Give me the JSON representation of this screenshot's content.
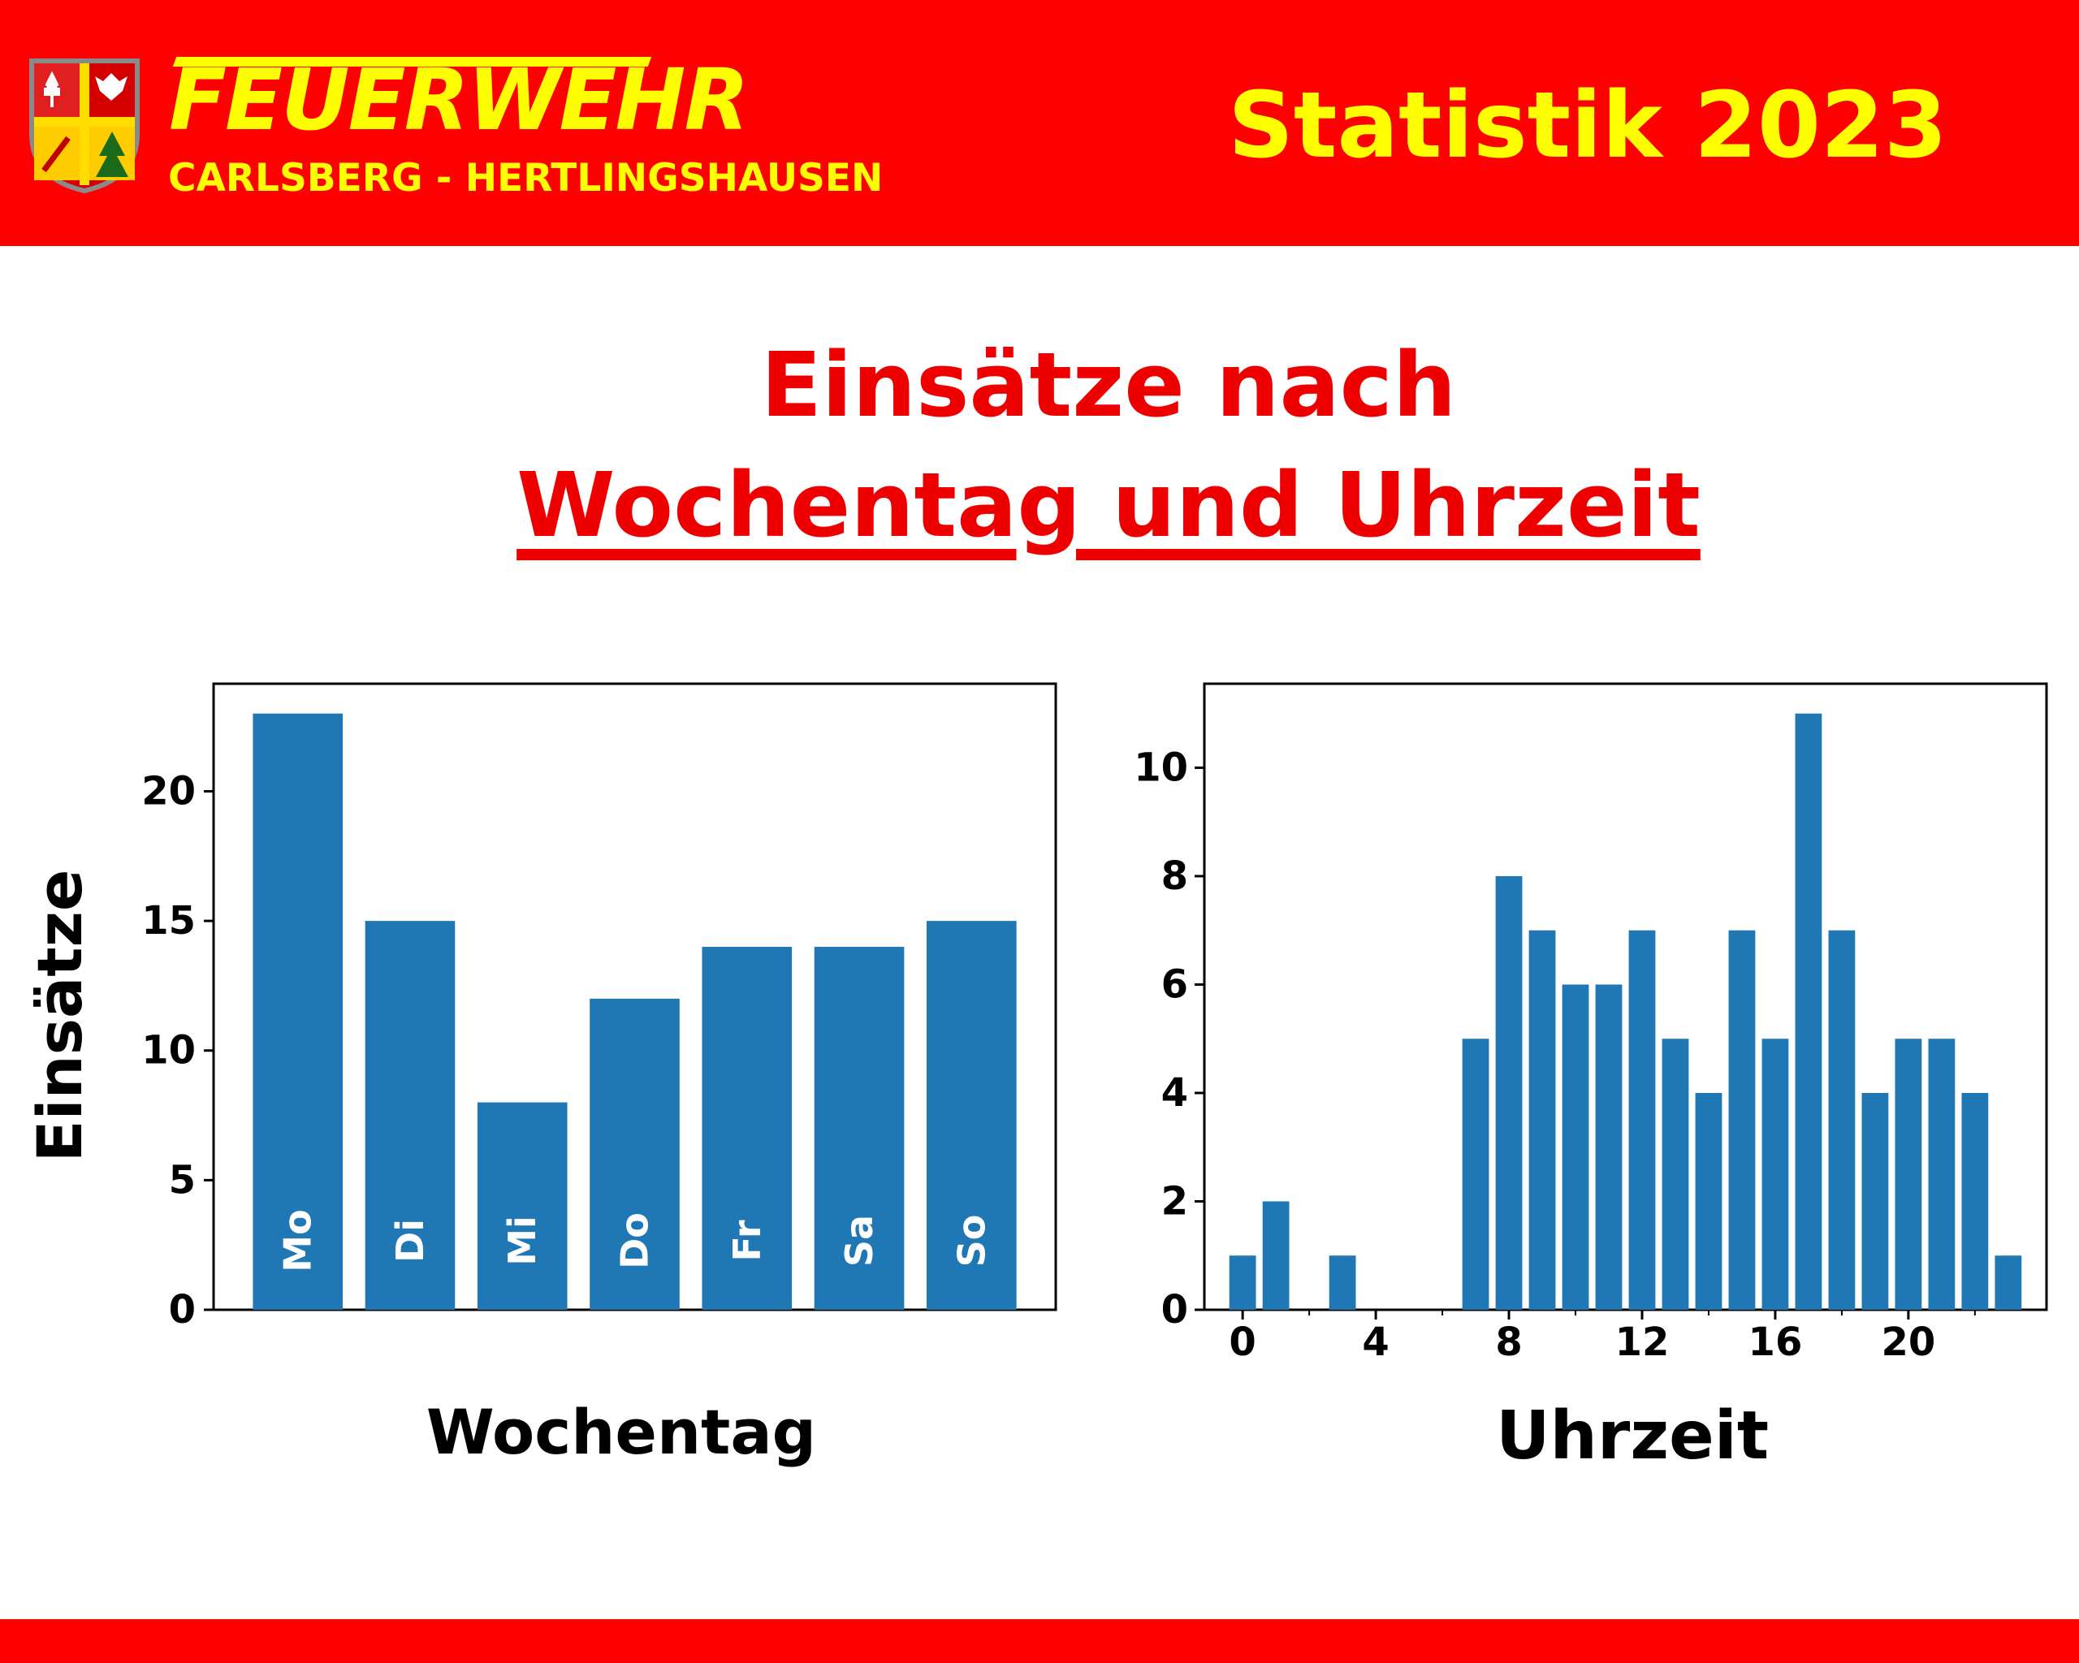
{
  "header": {
    "brand_name": "FEUERWEHR",
    "brand_subtitle": "CARLSBERG - HERTLINGSHAUSEN",
    "title": "Statistik 2023",
    "crest_icon": "coat-of-arms-icon"
  },
  "page": {
    "title_line1": "Einsätze nach",
    "title_line2": "Wochentag und Uhrzeit"
  },
  "colors": {
    "header_bg": "#ff0000",
    "header_text": "#ffff00",
    "title_text": "#ee0000",
    "bar": "#1f77b4"
  },
  "chart_data": [
    {
      "type": "bar",
      "categories": [
        "Mo",
        "Di",
        "Mi",
        "Do",
        "Fr",
        "Sa",
        "So"
      ],
      "values": [
        23,
        15,
        8,
        12,
        14,
        14,
        15
      ],
      "xlabel": "Wochentag",
      "ylabel": "Einsätze",
      "ylim": [
        0,
        24.15
      ],
      "yticks": [
        0,
        5,
        10,
        15,
        20
      ],
      "grid": false,
      "bar_labels_inside": true
    },
    {
      "type": "bar",
      "x": [
        0,
        1,
        2,
        3,
        4,
        5,
        6,
        7,
        8,
        9,
        10,
        11,
        12,
        13,
        14,
        15,
        16,
        17,
        18,
        19,
        20,
        21,
        22,
        23
      ],
      "values": [
        1,
        2,
        0,
        1,
        0,
        0,
        0,
        5,
        8,
        7,
        6,
        6,
        7,
        5,
        4,
        7,
        5,
        11,
        7,
        4,
        5,
        5,
        4,
        1
      ],
      "xlabel": "Uhrzeit",
      "ylabel": "",
      "ylim": [
        0,
        11.55
      ],
      "xlim": [
        -1.15,
        24.15
      ],
      "yticks": [
        0,
        2,
        4,
        6,
        8,
        10
      ],
      "xticks": [
        0,
        4,
        8,
        12,
        16,
        20
      ],
      "minor_xticks": [
        2,
        6,
        10,
        14,
        18,
        22
      ],
      "grid": false
    }
  ]
}
